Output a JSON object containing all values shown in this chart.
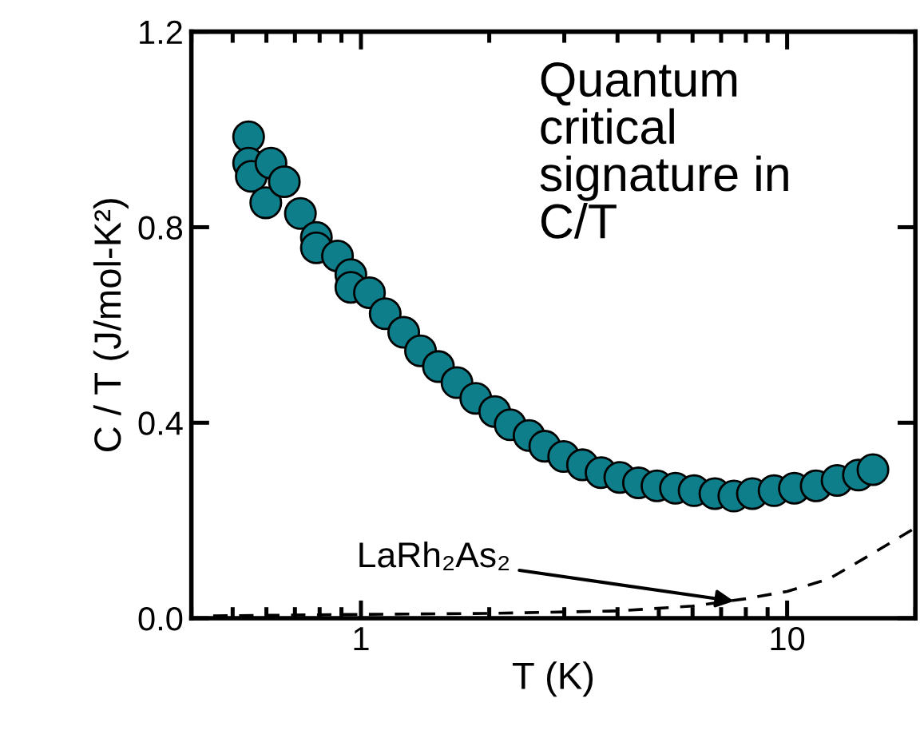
{
  "chart_data": {
    "type": "scatter",
    "xlabel": "T (K)",
    "ylabel": "C / T (J/mol-K²)",
    "log": "x",
    "xlim": [
      0.4,
      20
    ],
    "xticks": [
      1,
      10
    ],
    "ylim": [
      0,
      1.2
    ],
    "yticks": [
      {
        "value": 0,
        "label": "0.0"
      },
      {
        "value": 0.4,
        "label": "0.4"
      },
      {
        "value": 0.8,
        "label": "0.8"
      },
      {
        "value": 1.2,
        "label": "1.2"
      }
    ],
    "grid": false,
    "series": [
      {
        "marker": "circle",
        "color": "#0e7f8a",
        "x": [
          0.545,
          0.545,
          0.553,
          0.615,
          0.598,
          0.661,
          0.721,
          0.786,
          0.786,
          0.881,
          0.947,
          0.947,
          1.047,
          1.14,
          1.26,
          1.38,
          1.52,
          1.68,
          1.86,
          2.06,
          2.24,
          2.48,
          2.7,
          2.99,
          3.31,
          3.66,
          4.05,
          4.48,
          4.95,
          5.47,
          6.05,
          6.77,
          7.5,
          8.29,
          9.32,
          10.4,
          11.7,
          13.1,
          14.7,
          15.9
        ],
        "values": [
          0.985,
          0.931,
          0.904,
          0.931,
          0.85,
          0.893,
          0.828,
          0.779,
          0.758,
          0.741,
          0.703,
          0.677,
          0.666,
          0.623,
          0.585,
          0.547,
          0.515,
          0.482,
          0.45,
          0.423,
          0.396,
          0.374,
          0.352,
          0.331,
          0.314,
          0.298,
          0.288,
          0.277,
          0.271,
          0.266,
          0.261,
          0.255,
          0.25,
          0.255,
          0.261,
          0.266,
          0.271,
          0.282,
          0.293,
          0.304
        ]
      },
      {
        "type": "line",
        "line_style": "dashed",
        "color": "#000000",
        "x": [
          0.45,
          1,
          2,
          4,
          6,
          8,
          10,
          12.5,
          15,
          20
        ],
        "values": [
          0.005,
          0.008,
          0.01,
          0.015,
          0.025,
          0.04,
          0.055,
          0.08,
          0.12,
          0.185
        ]
      }
    ],
    "annotations": [
      "Quantum\ncritical\nsignature in\nC/T",
      {
        "text": "LaRh₂As₂",
        "x": 7.5,
        "y": 0.035
      }
    ]
  }
}
